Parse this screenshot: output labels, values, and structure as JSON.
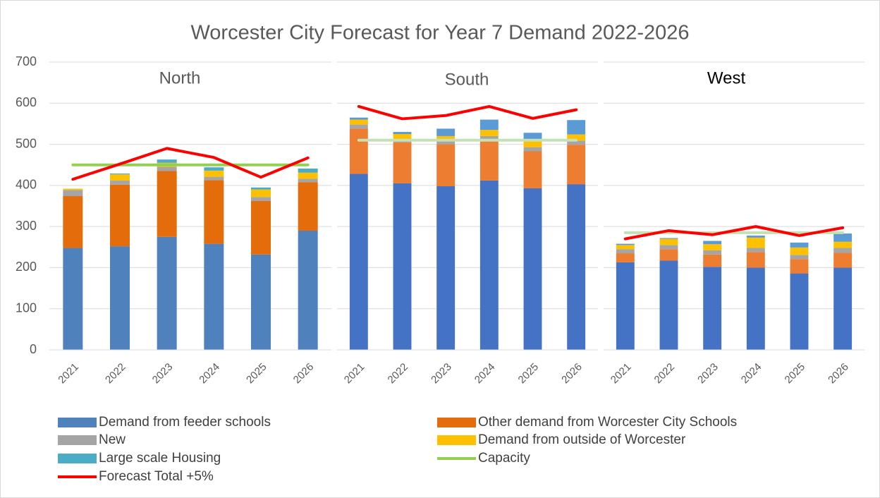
{
  "title": "Worcester City Forecast for Year 7 Demand 2022-2026",
  "chart_data": [
    {
      "type": "bar",
      "stacked": true,
      "title": "North",
      "categories": [
        "2021",
        "2022",
        "2023",
        "2024",
        "2025",
        "2026"
      ],
      "ylim": [
        0,
        700
      ],
      "yticks": [
        0,
        100,
        200,
        300,
        400,
        500,
        600,
        700
      ],
      "grid": true,
      "series": [
        {
          "name": "Demand from feeder schools",
          "color": "#4f81bd",
          "values": [
            248,
            252,
            275,
            258,
            232,
            290
          ]
        },
        {
          "name": "Other demand from Worcester City Schools",
          "color": "#e46c0a",
          "values": [
            126,
            150,
            160,
            155,
            130,
            118
          ]
        },
        {
          "name": "New",
          "color": "#a5a5a5",
          "values": [
            15,
            10,
            10,
            8,
            10,
            8
          ]
        },
        {
          "name": "Demand from outside of Worcester",
          "color": "#ffc000",
          "values": [
            3,
            15,
            10,
            15,
            18,
            15
          ]
        },
        {
          "name": "Large scale Housing",
          "color": "#4bacc6",
          "values": [
            0,
            2,
            8,
            8,
            5,
            10
          ]
        },
        {
          "name": "Capacity",
          "type": "line",
          "color": "#92d050",
          "values": [
            450,
            450,
            450,
            450,
            450,
            450
          ]
        },
        {
          "name": "Forecast Total +5%",
          "type": "line",
          "color": "#ff0000",
          "values": [
            415,
            452,
            490,
            468,
            420,
            467
          ]
        }
      ]
    },
    {
      "type": "bar",
      "stacked": true,
      "title": "South",
      "categories": [
        "2021",
        "2022",
        "2023",
        "2024",
        "2025",
        "2026"
      ],
      "ylim": [
        0,
        700
      ],
      "yticks": [
        0,
        100,
        200,
        300,
        400,
        500,
        600,
        700
      ],
      "grid": true,
      "series": [
        {
          "name": "Demand from feeder schools",
          "color": "#4472c4",
          "values": [
            428,
            405,
            398,
            412,
            393,
            403
          ]
        },
        {
          "name": "Other demand from Worcester City Schools",
          "color": "#ed7d31",
          "values": [
            110,
            100,
            102,
            98,
            90,
            96
          ]
        },
        {
          "name": "New",
          "color": "#a5a5a5",
          "values": [
            10,
            5,
            10,
            10,
            10,
            10
          ]
        },
        {
          "name": "Demand from outside of Worcester",
          "color": "#ffc000",
          "values": [
            12,
            15,
            10,
            15,
            15,
            15
          ]
        },
        {
          "name": "Large scale Housing",
          "color": "#5b9bd5",
          "values": [
            5,
            5,
            18,
            25,
            20,
            35
          ]
        },
        {
          "name": "Capacity",
          "type": "line",
          "color": "#c5e0b4",
          "values": [
            510,
            510,
            510,
            510,
            510,
            510
          ]
        },
        {
          "name": "Forecast Total +5%",
          "type": "line",
          "color": "#ff0000",
          "values": [
            592,
            562,
            570,
            592,
            563,
            584
          ]
        }
      ]
    },
    {
      "type": "bar",
      "stacked": true,
      "title": "West",
      "categories": [
        "2021",
        "2022",
        "2023",
        "2024",
        "2025",
        "2026"
      ],
      "ylim": [
        0,
        700
      ],
      "yticks": [
        0,
        100,
        200,
        300,
        400,
        500,
        600,
        700
      ],
      "grid": true,
      "series": [
        {
          "name": "Demand from feeder schools",
          "color": "#4472c4",
          "values": [
            213,
            217,
            202,
            200,
            186,
            200
          ]
        },
        {
          "name": "Other demand from Worcester City Schools",
          "color": "#ed7d31",
          "values": [
            22,
            28,
            30,
            38,
            35,
            36
          ]
        },
        {
          "name": "New",
          "color": "#a5a5a5",
          "values": [
            10,
            10,
            10,
            10,
            10,
            12
          ]
        },
        {
          "name": "Demand from outside of Worcester",
          "color": "#ffc000",
          "values": [
            10,
            15,
            15,
            25,
            18,
            15
          ]
        },
        {
          "name": "Large scale Housing",
          "color": "#5b9bd5",
          "values": [
            3,
            2,
            8,
            5,
            12,
            20
          ]
        },
        {
          "name": "Capacity",
          "type": "line",
          "color": "#c5e0b4",
          "values": [
            285,
            285,
            285,
            285,
            285,
            285
          ]
        },
        {
          "name": "Forecast Total +5%",
          "type": "line",
          "color": "#ff0000",
          "values": [
            270,
            290,
            280,
            300,
            278,
            297
          ]
        }
      ]
    }
  ]
}
